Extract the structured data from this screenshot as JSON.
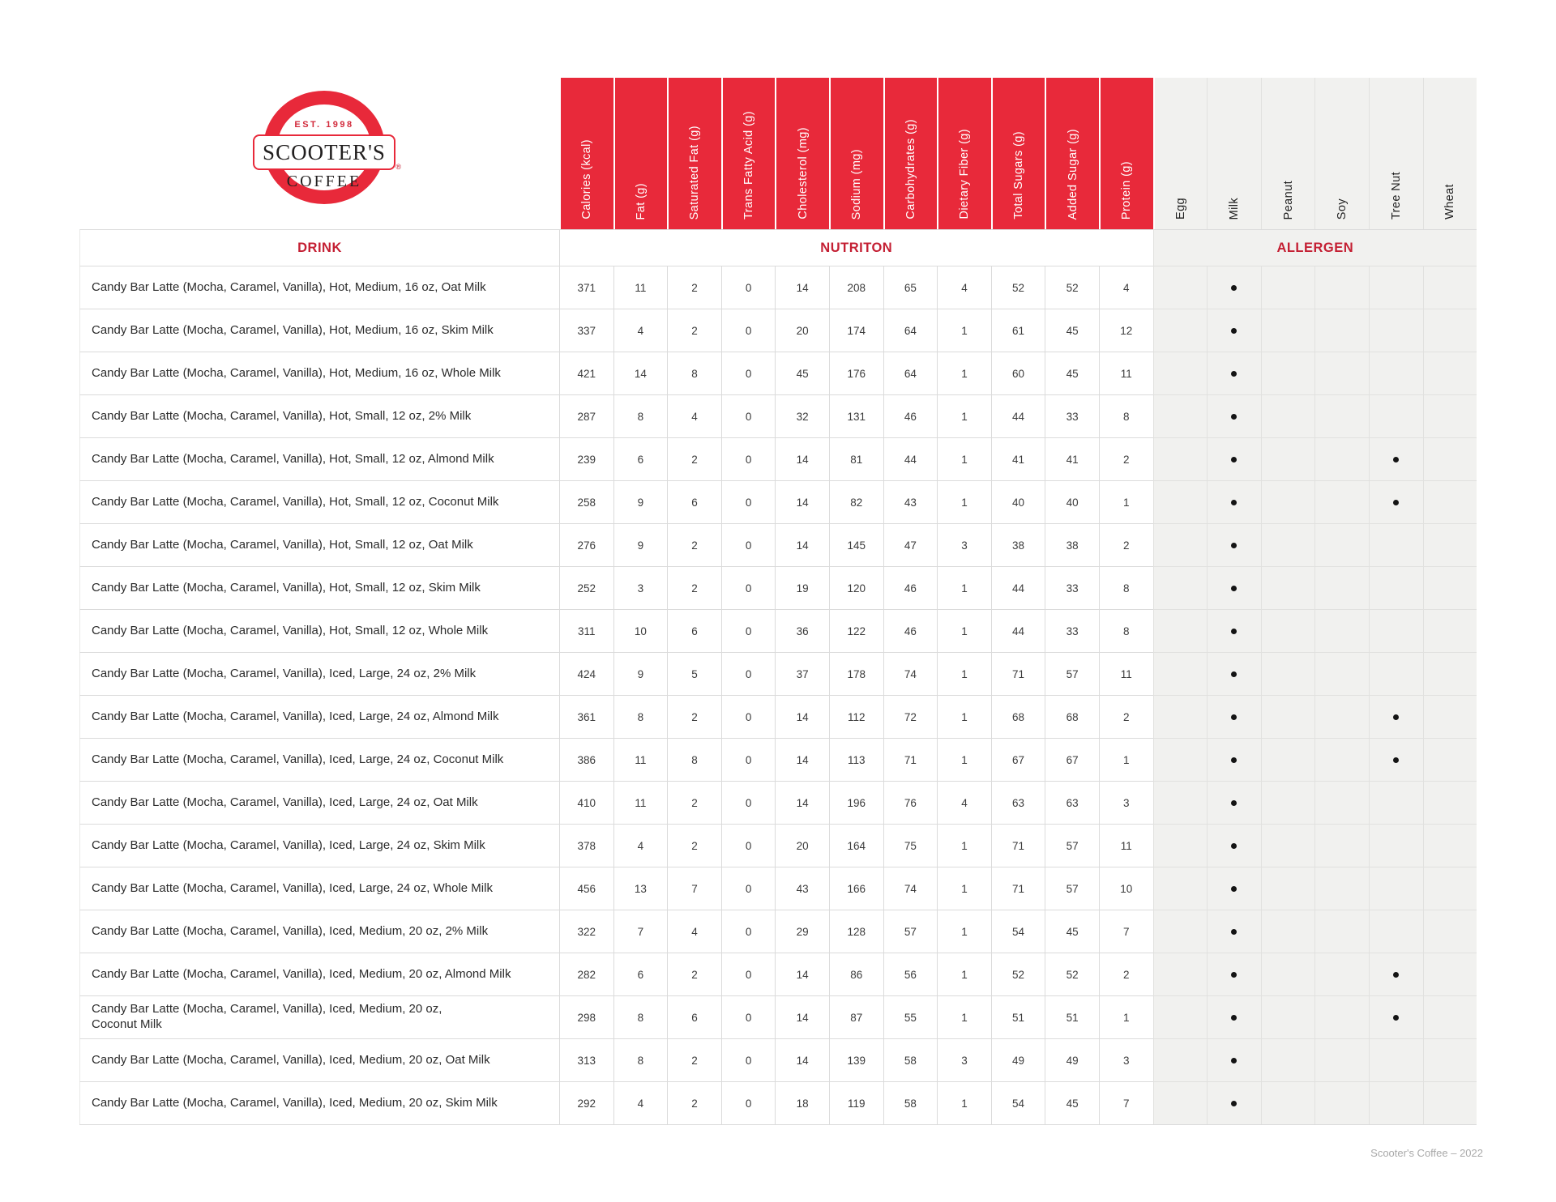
{
  "logo": {
    "established": "EST. 1998",
    "brand_line1": "SCOOTER'S",
    "brand_line2": "COFFEE",
    "registered_mark": "®"
  },
  "sections": {
    "drink": "DRINK",
    "nutrition": "NUTRITON",
    "allergen": "ALLERGEN"
  },
  "columns": {
    "nutrition": [
      "Calories (kcal)",
      "Fat (g)",
      "Saturated Fat (g)",
      "Trans Fatty Acid (g)",
      "Cholesterol (mg)",
      "Sodium (mg)",
      "Carbohydrates (g)",
      "Dietary Fiber (g)",
      "Total Sugars (g)",
      "Added Sugar (g)",
      "Protein (g)"
    ],
    "allergen": [
      "Egg",
      "Milk",
      "Peanut",
      "Soy",
      "Tree Nut",
      "Wheat"
    ]
  },
  "rows": [
    {
      "drink": "Candy Bar Latte (Mocha, Caramel, Vanilla), Hot, Medium, 16 oz, Oat Milk",
      "nutrition": [
        371,
        11,
        2,
        0,
        14,
        208,
        65,
        4,
        52,
        52,
        4
      ],
      "allergens": [
        "Milk"
      ]
    },
    {
      "drink": "Candy Bar Latte (Mocha, Caramel, Vanilla), Hot, Medium, 16 oz, Skim Milk",
      "nutrition": [
        337,
        4,
        2,
        0,
        20,
        174,
        64,
        1,
        61,
        45,
        12
      ],
      "allergens": [
        "Milk"
      ]
    },
    {
      "drink": "Candy Bar Latte (Mocha, Caramel, Vanilla), Hot, Medium, 16 oz, Whole Milk",
      "nutrition": [
        421,
        14,
        8,
        0,
        45,
        176,
        64,
        1,
        60,
        45,
        11
      ],
      "allergens": [
        "Milk"
      ]
    },
    {
      "drink": "Candy Bar Latte (Mocha, Caramel, Vanilla), Hot, Small, 12 oz, 2% Milk",
      "nutrition": [
        287,
        8,
        4,
        0,
        32,
        131,
        46,
        1,
        44,
        33,
        8
      ],
      "allergens": [
        "Milk"
      ]
    },
    {
      "drink": "Candy Bar Latte (Mocha, Caramel, Vanilla), Hot, Small, 12 oz, Almond Milk",
      "nutrition": [
        239,
        6,
        2,
        0,
        14,
        81,
        44,
        1,
        41,
        41,
        2
      ],
      "allergens": [
        "Milk",
        "Tree Nut"
      ]
    },
    {
      "drink": "Candy Bar Latte (Mocha, Caramel, Vanilla), Hot, Small, 12 oz, Coconut Milk",
      "nutrition": [
        258,
        9,
        6,
        0,
        14,
        82,
        43,
        1,
        40,
        40,
        1
      ],
      "allergens": [
        "Milk",
        "Tree Nut"
      ]
    },
    {
      "drink": "Candy Bar Latte (Mocha, Caramel, Vanilla), Hot, Small, 12 oz, Oat Milk",
      "nutrition": [
        276,
        9,
        2,
        0,
        14,
        145,
        47,
        3,
        38,
        38,
        2
      ],
      "allergens": [
        "Milk"
      ]
    },
    {
      "drink": "Candy Bar Latte (Mocha, Caramel, Vanilla), Hot, Small, 12 oz, Skim Milk",
      "nutrition": [
        252,
        3,
        2,
        0,
        19,
        120,
        46,
        1,
        44,
        33,
        8
      ],
      "allergens": [
        "Milk"
      ]
    },
    {
      "drink": "Candy Bar Latte (Mocha, Caramel, Vanilla), Hot, Small, 12 oz, Whole Milk",
      "nutrition": [
        311,
        10,
        6,
        0,
        36,
        122,
        46,
        1,
        44,
        33,
        8
      ],
      "allergens": [
        "Milk"
      ]
    },
    {
      "drink": "Candy Bar Latte (Mocha, Caramel, Vanilla), Iced, Large, 24 oz, 2% Milk",
      "nutrition": [
        424,
        9,
        5,
        0,
        37,
        178,
        74,
        1,
        71,
        57,
        11
      ],
      "allergens": [
        "Milk"
      ]
    },
    {
      "drink": "Candy Bar Latte (Mocha, Caramel, Vanilla), Iced, Large, 24 oz, Almond Milk",
      "nutrition": [
        361,
        8,
        2,
        0,
        14,
        112,
        72,
        1,
        68,
        68,
        2
      ],
      "allergens": [
        "Milk",
        "Tree Nut"
      ]
    },
    {
      "drink": "Candy Bar Latte (Mocha, Caramel, Vanilla), Iced, Large, 24 oz, Coconut Milk",
      "nutrition": [
        386,
        11,
        8,
        0,
        14,
        113,
        71,
        1,
        67,
        67,
        1
      ],
      "allergens": [
        "Milk",
        "Tree Nut"
      ]
    },
    {
      "drink": "Candy Bar Latte (Mocha, Caramel, Vanilla), Iced, Large, 24 oz, Oat Milk",
      "nutrition": [
        410,
        11,
        2,
        0,
        14,
        196,
        76,
        4,
        63,
        63,
        3
      ],
      "allergens": [
        "Milk"
      ]
    },
    {
      "drink": "Candy Bar Latte (Mocha, Caramel, Vanilla), Iced, Large, 24 oz, Skim Milk",
      "nutrition": [
        378,
        4,
        2,
        0,
        20,
        164,
        75,
        1,
        71,
        57,
        11
      ],
      "allergens": [
        "Milk"
      ]
    },
    {
      "drink": "Candy Bar Latte (Mocha, Caramel, Vanilla), Iced, Large, 24 oz, Whole Milk",
      "nutrition": [
        456,
        13,
        7,
        0,
        43,
        166,
        74,
        1,
        71,
        57,
        10
      ],
      "allergens": [
        "Milk"
      ]
    },
    {
      "drink": "Candy Bar Latte (Mocha, Caramel, Vanilla), Iced, Medium, 20 oz, 2% Milk",
      "nutrition": [
        322,
        7,
        4,
        0,
        29,
        128,
        57,
        1,
        54,
        45,
        7
      ],
      "allergens": [
        "Milk"
      ]
    },
    {
      "drink": "Candy Bar Latte (Mocha, Caramel, Vanilla), Iced, Medium, 20 oz, Almond Milk",
      "nutrition": [
        282,
        6,
        2,
        0,
        14,
        86,
        56,
        1,
        52,
        52,
        2
      ],
      "allergens": [
        "Milk",
        "Tree Nut"
      ]
    },
    {
      "drink": "Candy Bar Latte (Mocha, Caramel, Vanilla), Iced, Medium, 20 oz,\nCoconut Milk",
      "nutrition": [
        298,
        8,
        6,
        0,
        14,
        87,
        55,
        1,
        51,
        51,
        1
      ],
      "allergens": [
        "Milk",
        "Tree Nut"
      ]
    },
    {
      "drink": "Candy Bar Latte (Mocha, Caramel, Vanilla), Iced, Medium, 20 oz, Oat Milk",
      "nutrition": [
        313,
        8,
        2,
        0,
        14,
        139,
        58,
        3,
        49,
        49,
        3
      ],
      "allergens": [
        "Milk"
      ]
    },
    {
      "drink": "Candy Bar Latte (Mocha, Caramel, Vanilla), Iced, Medium, 20 oz, Skim Milk",
      "nutrition": [
        292,
        4,
        2,
        0,
        18,
        119,
        58,
        1,
        54,
        45,
        7
      ],
      "allergens": [
        "Milk"
      ]
    }
  ],
  "footer": {
    "credit": "Scooter's Coffee – 2022"
  },
  "colors": {
    "brand_red": "#E8293A",
    "section_label_red": "#C41F33",
    "allergen_bg": "#F1F1EF"
  }
}
